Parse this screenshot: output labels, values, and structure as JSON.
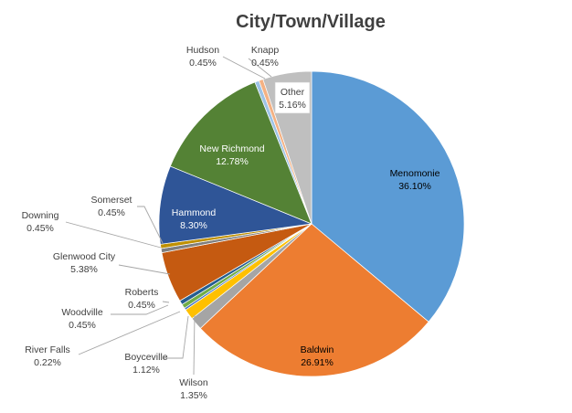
{
  "chart_data": {
    "type": "pie",
    "title": "City/Town/Village",
    "start_angle_deg": 0,
    "direction": "clockwise",
    "legend": "none",
    "slices": [
      {
        "label": "Menomonie",
        "value": 36.1,
        "display": "36.10%",
        "color": "#5b9bd5"
      },
      {
        "label": "Baldwin",
        "value": 26.91,
        "display": "26.91%",
        "color": "#ed7d31"
      },
      {
        "label": "Wilson",
        "value": 1.35,
        "display": "1.35%",
        "color": "#a5a5a5"
      },
      {
        "label": "Boyceville",
        "value": 1.12,
        "display": "1.12%",
        "color": "#ffc000"
      },
      {
        "label": "River Falls",
        "value": 0.22,
        "display": "0.22%",
        "color": "#4472c4"
      },
      {
        "label": "Woodville",
        "value": 0.45,
        "display": "0.45%",
        "color": "#70ad47"
      },
      {
        "label": "Roberts",
        "value": 0.45,
        "display": "0.45%",
        "color": "#255e91"
      },
      {
        "label": "Glenwood City",
        "value": 5.38,
        "display": "5.38%",
        "color": "#c55a11"
      },
      {
        "label": "Downing",
        "value": 0.45,
        "display": "0.45%",
        "color": "#7f7f7f"
      },
      {
        "label": "Somerset",
        "value": 0.45,
        "display": "0.45%",
        "color": "#bf9000"
      },
      {
        "label": "Hammond",
        "value": 8.3,
        "display": "8.30%",
        "color": "#2f5597"
      },
      {
        "label": "New Richmond",
        "value": 12.78,
        "display": "12.78%",
        "color": "#548235"
      },
      {
        "label": "Hudson",
        "value": 0.45,
        "display": "0.45%",
        "color": "#9dc3e6"
      },
      {
        "label": "Knapp",
        "value": 0.45,
        "display": "0.45%",
        "color": "#f4b183"
      },
      {
        "label": "Other",
        "value": 5.16,
        "display": "5.16%",
        "color": "#bfbfbf"
      }
    ]
  }
}
